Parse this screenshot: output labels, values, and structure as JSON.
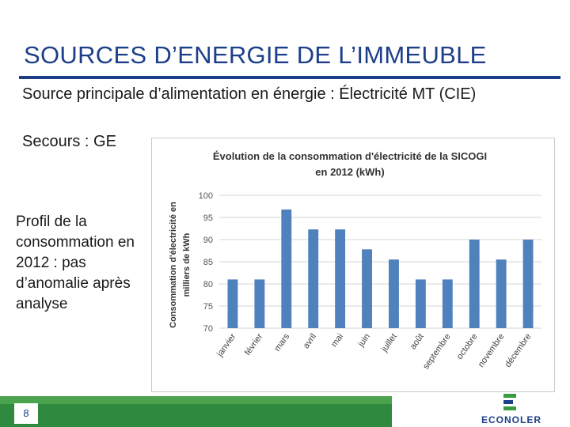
{
  "slide": {
    "title": "SOURCES D’ENERGIE DE L’IMMEUBLE",
    "bullet_main": "Source principale d’alimentation en énergie : Électricité MT (CIE)",
    "bullet_secours": "Secours : GE",
    "side_note": "Profil de la consommation en 2012 : pas d’anomalie après analyse",
    "page_number": "8",
    "logo_text": "ECONOLER"
  },
  "colors": {
    "title": "#1d3f8a",
    "bar": "#4f81bd",
    "bottom_bar": "#2f8a3f",
    "logo_green": "#3a9a3f"
  },
  "chart_data": {
    "type": "bar",
    "title": "Évolution de la consommation d'électricité de la SICOGI en 2012 (kWh)",
    "title_lines": [
      "Évolution de la consommation d'électricité de la SICOGI",
      "en 2012 (kWh)"
    ],
    "ylabel": "Consommation d'électricité en milliers de kWh",
    "ylabel_lines": [
      "Consommation d'électricité en",
      "milliers de kWh"
    ],
    "xlabel": "",
    "categories": [
      "janvier",
      "février",
      "mars",
      "avril",
      "mai",
      "juin",
      "juillet",
      "août",
      "septembre",
      "octobre",
      "novembre",
      "décembre"
    ],
    "values": [
      81,
      81,
      96.8,
      92.3,
      92.3,
      87.8,
      85.5,
      81,
      81,
      90,
      85.5,
      90
    ],
    "ylim": [
      70,
      100
    ],
    "yticks": [
      "70",
      "75",
      "80",
      "85",
      "90",
      "95",
      "100"
    ],
    "grid": true,
    "legend": "none"
  }
}
